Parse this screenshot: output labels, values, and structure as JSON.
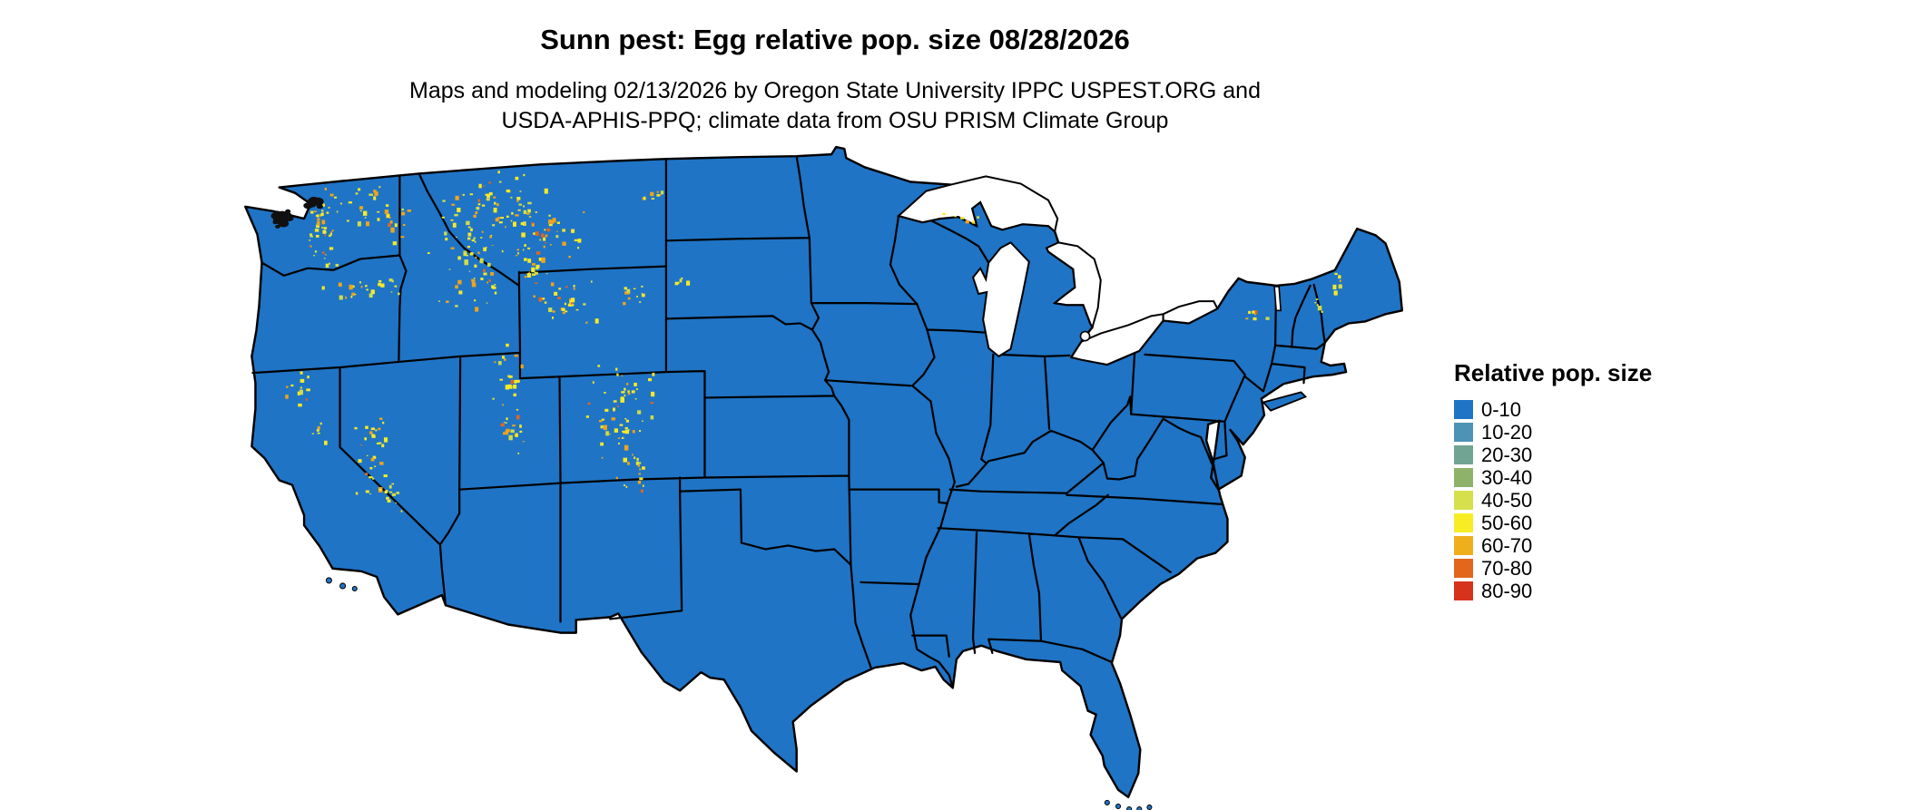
{
  "title": "Sunn pest: Egg relative pop. size 08/28/2026",
  "subtitle_line1": "Maps and modeling 02/13/2026 by Oregon State University IPPC USPEST.ORG and",
  "subtitle_line2": "USDA-APHIS-PPQ; climate data from OSU PRISM Climate Group",
  "map": {
    "fill_color": "#1F74C5",
    "border_color": "#000000",
    "speckle_colors": [
      "#F6E926",
      "#EDA41C",
      "#CFDC49",
      "#E0671F"
    ],
    "dark_patch_color": "#101010"
  },
  "legend": {
    "title": "Relative pop. size",
    "items": [
      {
        "label": "0-10",
        "color": "#1F74C5"
      },
      {
        "label": "10-20",
        "color": "#4D93B5"
      },
      {
        "label": "20-30",
        "color": "#71A492"
      },
      {
        "label": "30-40",
        "color": "#8FB26B"
      },
      {
        "label": "40-50",
        "color": "#D6DF4C"
      },
      {
        "label": "50-60",
        "color": "#F8ED25"
      },
      {
        "label": "60-70",
        "color": "#EFAF1D"
      },
      {
        "label": "70-80",
        "color": "#E2661C"
      },
      {
        "label": "80-90",
        "color": "#D6331C"
      }
    ]
  },
  "chart_data": {
    "type": "heatmap",
    "subtype": "choropleth-map-contiguous-us",
    "title": "Sunn pest: Egg relative pop. size 08/28/2026",
    "legend_title": "Relative pop. size",
    "classes": [
      "0-10",
      "10-20",
      "20-30",
      "30-40",
      "40-50",
      "50-60",
      "60-70",
      "70-80",
      "80-90"
    ],
    "class_colors": [
      "#1F74C5",
      "#4D93B5",
      "#71A492",
      "#8FB26B",
      "#D6DF4C",
      "#F8ED25",
      "#EFAF1D",
      "#E2661C",
      "#D6331C"
    ],
    "summary_visible": "Most of the contiguous US mapped in the 0-10 class (blue); scattered 40-70 class (yellow/gold) patches across western mountain regions and small areas of the Northeast"
  }
}
